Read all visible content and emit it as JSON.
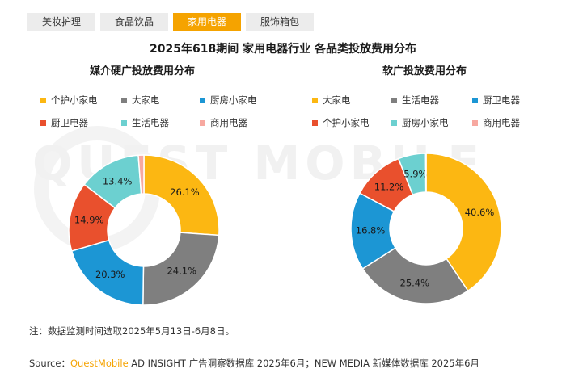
{
  "tabs": [
    {
      "label": "美妆护理",
      "active": false
    },
    {
      "label": "食品饮品",
      "active": false
    },
    {
      "label": "家用电器",
      "active": true
    },
    {
      "label": "服饰箱包",
      "active": false
    }
  ],
  "main_title": "2025年618期间 家用电器行业 各品类投放费用分布",
  "watermark": "QUEST MOBILE",
  "note": "注：数据监测时间选取2025年5月13日-6月8日。",
  "source": {
    "prefix": "Source：",
    "brand": "QuestMobile",
    "rest": " AD INSIGHT 广告洞察数据库 2025年6月；NEW MEDIA 新媒体数据库 2025年6月"
  },
  "colors": {
    "accent": "#f5a300",
    "tab_inactive": "#ececec"
  },
  "chart_data": [
    {
      "type": "pie",
      "title": "媒介硬广投放费用分布",
      "legend": [
        "个护小家电",
        "大家电",
        "厨房小家电",
        "厨卫电器",
        "生活电器",
        "商用电器"
      ],
      "slices": [
        {
          "label": "个护小家电",
          "value": 26.1,
          "display": "26.1%",
          "color": "#fcb712"
        },
        {
          "label": "大家电",
          "value": 24.1,
          "display": "24.1%",
          "color": "#7f7f7f"
        },
        {
          "label": "厨房小家电",
          "value": 20.3,
          "display": "20.3%",
          "color": "#1c96d4"
        },
        {
          "label": "厨卫电器",
          "value": 14.9,
          "display": "14.9%",
          "color": "#e9502d"
        },
        {
          "label": "生活电器",
          "value": 13.4,
          "display": "13.4%",
          "color": "#6cd0d0"
        },
        {
          "label": "商用电器",
          "value": 1.2,
          "display": "",
          "color": "#f7a8a0"
        }
      ]
    },
    {
      "type": "pie",
      "title": "软广投放费用分布",
      "legend": [
        "大家电",
        "生活电器",
        "厨卫电器",
        "个护小家电",
        "厨房小家电",
        "商用电器"
      ],
      "slices": [
        {
          "label": "大家电",
          "value": 40.6,
          "display": "40.6%",
          "color": "#fcb712"
        },
        {
          "label": "生活电器",
          "value": 25.4,
          "display": "25.4%",
          "color": "#7f7f7f"
        },
        {
          "label": "厨卫电器",
          "value": 16.8,
          "display": "16.8%",
          "color": "#1c96d4"
        },
        {
          "label": "个护小家电",
          "value": 11.2,
          "display": "11.2%",
          "color": "#e9502d"
        },
        {
          "label": "厨房小家电",
          "value": 5.9,
          "display": "5.9%",
          "color": "#6cd0d0"
        },
        {
          "label": "商用电器",
          "value": 0.1,
          "display": "",
          "color": "#f7a8a0"
        }
      ]
    }
  ]
}
